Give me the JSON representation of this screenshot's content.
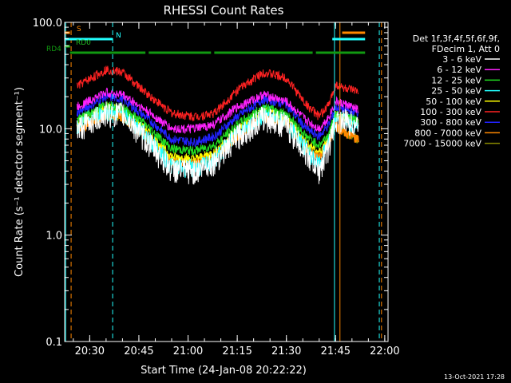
{
  "chart_data": {
    "type": "line",
    "title": "RHESSI Count Rates",
    "xlabel": "Start Time (24-Jan-08 20:22:22)",
    "ylabel": "Count Rate (s⁻¹ detector segment⁻¹)",
    "yscale": "log",
    "ylim": [
      0.1,
      100.0
    ],
    "xlim": [
      "20:22:22",
      "22:01:00"
    ],
    "xticks": [
      "20:30",
      "20:45",
      "21:00",
      "21:15",
      "21:30",
      "21:45",
      "22:00"
    ],
    "yticks": [
      "0.1",
      "1.0",
      "10.0",
      "100.0"
    ],
    "legend_header": [
      "Det 1f,3f,4f,5f,6f,9f,",
      "FDecim 1, Att 0"
    ],
    "legend_position": "right",
    "footer": "13-Oct-2021 17:28",
    "x": [
      "20:22",
      "20:26",
      "20:35",
      "20:40",
      "20:47",
      "20:55",
      "21:02",
      "21:08",
      "21:15",
      "21:23",
      "21:30",
      "21:36",
      "21:40",
      "21:43",
      "21:45",
      "21:48",
      "21:52",
      "21:54"
    ],
    "series": [
      {
        "name": "3 - 6 keV",
        "color": "#ffffff",
        "values": [
          null,
          10.0,
          14,
          14,
          8,
          4.2,
          4.0,
          5.0,
          8.5,
          13,
          11,
          6,
          4.0,
          7,
          12,
          12,
          11,
          null
        ]
      },
      {
        "name": "6 - 12 keV",
        "color": "#ff22ff",
        "values": [
          null,
          16,
          22,
          21,
          15,
          10,
          10.0,
          11,
          16,
          21,
          18,
          12,
          10,
          13,
          18,
          17,
          15,
          null
        ]
      },
      {
        "name": "12 - 25 keV",
        "color": "#22dd22",
        "values": [
          null,
          12,
          17,
          16,
          11,
          6.5,
          6.2,
          7,
          11,
          16,
          14,
          8.5,
          7,
          9,
          14,
          13,
          12,
          null
        ]
      },
      {
        "name": "25 - 50 keV",
        "color": "#22ffff",
        "values": [
          null,
          11,
          15,
          14,
          9,
          4.5,
          4.2,
          5,
          9.5,
          14,
          12,
          6.5,
          4.5,
          8,
          13,
          12,
          11,
          null
        ]
      },
      {
        "name": "50 - 100 keV",
        "color": "#ffff00",
        "values": [
          null,
          11.5,
          16,
          15,
          10,
          5.5,
          5.2,
          6,
          10,
          15,
          13,
          7.5,
          6,
          8.5,
          13.5,
          12.5,
          11.5,
          null
        ]
      },
      {
        "name": "100 - 300 keV",
        "color": "#ff2222",
        "values": [
          null,
          25,
          36,
          34,
          22,
          14,
          13,
          14,
          23,
          34,
          30,
          17,
          13,
          17,
          26,
          24,
          22,
          null
        ]
      },
      {
        "name": "300 - 800 keV",
        "color": "#2222ff",
        "values": [
          null,
          14,
          20,
          19,
          13,
          8,
          7.5,
          8.5,
          13,
          19,
          17,
          10,
          8.5,
          11,
          16,
          15,
          14,
          null
        ]
      },
      {
        "name": "800 - 7000 keV",
        "color": "#ff8800",
        "values": [
          null,
          10,
          13.5,
          13,
          8.5,
          5,
          4.8,
          5.5,
          8.5,
          13,
          11.5,
          6.5,
          5.5,
          7.5,
          11,
          9,
          8,
          null
        ]
      },
      {
        "name": "7000 - 15000 keV",
        "color": "#888800",
        "values": [
          null,
          10,
          13.5,
          13,
          8.5,
          5,
          4.8,
          5.5,
          8.5,
          13,
          11.5,
          6.5,
          5.5,
          7.5,
          11,
          9,
          8,
          null
        ]
      }
    ],
    "flags": [
      {
        "label": "S",
        "color": "#ff8800",
        "segments": [
          [
            "20:22:22",
            "20:24"
          ],
          [
            "21:47",
            "21:54"
          ]
        ]
      },
      {
        "label": "N",
        "color": "#22ffff",
        "segments": [
          [
            "20:22:22",
            "20:37"
          ],
          [
            "21:44",
            "21:54"
          ]
        ]
      },
      {
        "label": "RD0",
        "color": "#22bb22",
        "segments": [
          [
            "20:22:22",
            "20:24"
          ]
        ]
      },
      {
        "label": "RD4",
        "color": "#119911",
        "segments": [
          [
            "20:24",
            "20:47"
          ],
          [
            "20:48",
            "21:07"
          ],
          [
            "21:08",
            "21:38"
          ],
          [
            "21:39",
            "21:54"
          ]
        ]
      }
    ],
    "vlines": [
      {
        "time": "20:22:40",
        "color": "#22ffff",
        "style": "solid"
      },
      {
        "time": "20:24:20",
        "color": "#ff8800",
        "style": "dashed"
      },
      {
        "time": "20:37:00",
        "color": "#22ffff",
        "style": "dashed"
      },
      {
        "time": "21:44:40",
        "color": "#22ffff",
        "style": "solid"
      },
      {
        "time": "21:46:20",
        "color": "#ff8800",
        "style": "solid"
      },
      {
        "time": "21:58:20",
        "color": "#22ffff",
        "style": "dashed"
      },
      {
        "time": "21:59:00",
        "color": "#ff8800",
        "style": "dashed"
      }
    ]
  }
}
